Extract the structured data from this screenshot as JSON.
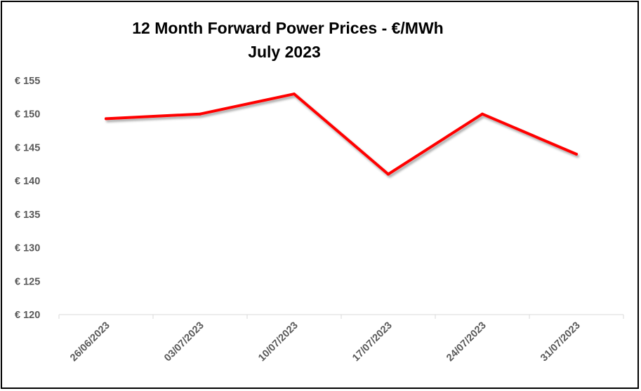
{
  "chart_data": {
    "type": "line",
    "title": "12 Month Forward Power Prices - €/MWh",
    "subtitle": "July 2023",
    "xlabel": "",
    "ylabel": "",
    "categories": [
      "26/06/2023",
      "03/07/2023",
      "10/07/2023",
      "17/07/2023",
      "24/07/2023",
      "31/07/2023"
    ],
    "series": [
      {
        "values": [
          149.3,
          150.0,
          153.0,
          141.0,
          150.0,
          144.0
        ],
        "color": "#ff0000"
      }
    ],
    "ylim": [
      120,
      155
    ],
    "yticks": [
      120,
      125,
      130,
      135,
      140,
      145,
      150,
      155
    ],
    "ytick_prefix": "€ ",
    "grid": false,
    "legend": "none"
  }
}
